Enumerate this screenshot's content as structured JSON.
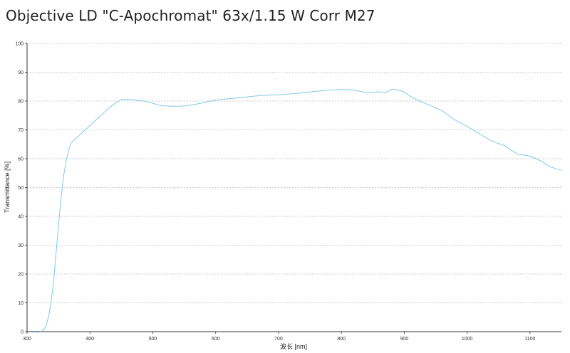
{
  "chart_data": {
    "type": "line",
    "title": "Objective LD \"C-Apochromat\" 63x/1.15 W Corr M27",
    "xlabel": "波长 [nm]",
    "ylabel": "Transmittance [%]",
    "xlim": [
      300,
      1150
    ],
    "ylim": [
      0,
      100
    ],
    "xticks": [
      300,
      400,
      500,
      600,
      700,
      800,
      900,
      1000,
      1100
    ],
    "yticks": [
      0,
      10,
      20,
      30,
      40,
      50,
      60,
      70,
      80,
      90,
      100
    ],
    "grid": "horizontal-dashed",
    "line_color": "#7fc8ea",
    "dashed_segment": {
      "x": [
        306,
        322
      ],
      "y": [
        0,
        0
      ],
      "color": "#3a6fc8"
    },
    "series": [
      {
        "x": [
          322,
          326,
          330,
          334,
          338,
          342,
          346,
          350,
          354,
          358,
          362,
          366,
          370,
          375,
          380,
          385,
          390,
          395,
          400,
          410,
          420,
          430,
          440,
          450,
          460,
          470,
          480,
          490,
          500,
          510,
          520,
          530,
          540,
          550,
          560,
          570,
          580,
          590,
          600,
          620,
          640,
          660,
          680,
          700,
          720,
          740,
          760,
          780,
          800,
          820,
          840,
          860,
          870,
          880,
          890,
          900,
          910,
          920,
          940,
          960,
          980,
          1000,
          1020,
          1040,
          1060,
          1070,
          1080,
          1100,
          1110,
          1120,
          1130,
          1140,
          1150
        ],
        "y": [
          0,
          0.5,
          2,
          5,
          10,
          17,
          27,
          37,
          46,
          54,
          59,
          63,
          65.5,
          66.5,
          67.5,
          68.5,
          69.5,
          70.5,
          71.5,
          73.5,
          75.5,
          77.5,
          79.2,
          80.5,
          80.6,
          80.4,
          80.2,
          79.8,
          79.2,
          78.6,
          78.3,
          78.2,
          78.2,
          78.3,
          78.6,
          79.0,
          79.4,
          79.9,
          80.3,
          80.8,
          81.2,
          81.7,
          82.0,
          82.2,
          82.5,
          82.9,
          83.4,
          83.8,
          84.0,
          83.8,
          82.9,
          83.2,
          82.9,
          84.1,
          83.9,
          83.1,
          81.6,
          80.4,
          78.6,
          76.7,
          73.5,
          71.2,
          68.6,
          66.0,
          64.5,
          63.0,
          61.6,
          60.9,
          60.0,
          58.9,
          57.4,
          56.6,
          56.0
        ]
      }
    ]
  }
}
